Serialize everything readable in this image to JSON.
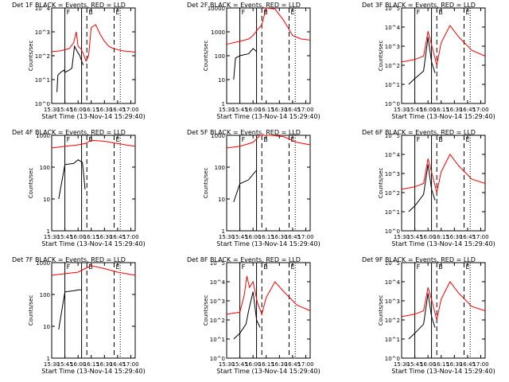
{
  "page": {
    "background": "#ffffff"
  },
  "common": {
    "x_tick_labels": [
      "15:30",
      "15:45",
      "16:00",
      "16:15",
      "16:30",
      "16:45",
      "17:00"
    ],
    "x_ticks_minutes_since_15_30": [
      0,
      15,
      30,
      45,
      60,
      75,
      90
    ],
    "xlabel": "Start Time (13-Nov-14 15:29:40)",
    "ylabel": "Counts/sec",
    "marker_labels": {
      "F": "F",
      "B": "B",
      "E": "E"
    },
    "markers_time": {
      "solid_1": "15:45",
      "solid_2": "16:04",
      "dashed_1": "16:10",
      "dashed_2": "16:41",
      "dotted_1": "16:48"
    },
    "colors": {
      "events": "#000000",
      "lld": "#ff0000"
    }
  },
  "chart_data": [
    {
      "id": "det1",
      "type": "line",
      "title": "Det 1F BLACK = Events, RED = LLD",
      "yscale": "log",
      "ylim": [
        1,
        10000
      ],
      "y_tick_labels": [
        "10^0",
        "10^1",
        "10^2",
        "10^3",
        "10^4"
      ],
      "series": [
        {
          "name": "Events",
          "color": "#000000",
          "x": [
            "15:36",
            "15:37",
            "15:40",
            "15:44",
            "15:45",
            "15:50",
            "15:53",
            "15:56",
            "15:59",
            "16:02",
            "16:04",
            "16:06"
          ],
          "y": [
            3,
            15,
            20,
            25,
            20,
            25,
            30,
            250,
            150,
            100,
            60,
            40
          ]
        },
        {
          "name": "LLD",
          "color": "#ff0000",
          "x": [
            "15:30",
            "15:40",
            "15:50",
            "15:55",
            "15:58",
            "16:00",
            "16:03",
            "16:06",
            "16:09",
            "16:12",
            "16:15",
            "16:20",
            "16:25",
            "16:30",
            "16:35",
            "16:40",
            "16:45",
            "16:50",
            "17:00",
            "17:05"
          ],
          "y": [
            150,
            160,
            200,
            350,
            1000,
            250,
            200,
            120,
            60,
            100,
            1500,
            2000,
            800,
            400,
            250,
            200,
            180,
            160,
            150,
            140
          ]
        }
      ]
    },
    {
      "id": "det2",
      "type": "line",
      "title": "Det 2F BLACK = Events, RED = LLD",
      "yscale": "log",
      "ylim": [
        1,
        10000
      ],
      "y_tick_labels": [
        "1",
        "10",
        "100",
        "1000",
        "10000"
      ],
      "series": [
        {
          "name": "Events",
          "color": "#000000",
          "x": [
            "15:38",
            "15:40",
            "15:45",
            "15:50",
            "15:55",
            "16:00",
            "16:04"
          ],
          "y": [
            10,
            80,
            100,
            110,
            120,
            200,
            150
          ]
        },
        {
          "name": "LLD",
          "color": "#ff0000",
          "x": [
            "15:30",
            "15:45",
            "15:55",
            "16:00",
            "16:05",
            "16:10",
            "16:15",
            "16:25",
            "16:35",
            "16:45",
            "16:55",
            "17:05"
          ],
          "y": [
            300,
            400,
            500,
            700,
            1200,
            2000,
            12000,
            9000,
            3000,
            700,
            500,
            450
          ]
        }
      ]
    },
    {
      "id": "det3",
      "type": "line",
      "title": "Det 3F BLACK = Events, RED = LLD",
      "yscale": "log",
      "ylim": [
        1,
        100000
      ],
      "y_tick_labels": [
        "10^0",
        "10^1",
        "10^2",
        "10^3",
        "10^4",
        "10^5"
      ],
      "series": [
        {
          "name": "Events",
          "color": "#000000",
          "x": [
            "15:38",
            "15:45",
            "15:55",
            "16:00",
            "16:04",
            "16:08"
          ],
          "y": [
            10,
            20,
            50,
            3000,
            150,
            40
          ]
        },
        {
          "name": "LLD",
          "color": "#ff0000",
          "x": [
            "15:30",
            "15:45",
            "15:55",
            "16:00",
            "16:05",
            "16:10",
            "16:15",
            "16:25",
            "16:35",
            "16:50",
            "17:05"
          ],
          "y": [
            150,
            200,
            300,
            6000,
            800,
            100,
            1500,
            12000,
            3000,
            600,
            300
          ]
        }
      ]
    },
    {
      "id": "det4",
      "type": "line",
      "title": "Det 4F BLACK = Events, RED = LLD",
      "yscale": "log",
      "ylim": [
        1,
        1000
      ],
      "y_tick_labels": [
        "1",
        "10",
        "100",
        "1000"
      ],
      "series": [
        {
          "name": "Events",
          "color": "#000000",
          "x": [
            "15:38",
            "15:45",
            "15:55",
            "16:00",
            "16:05",
            "16:08"
          ],
          "y": [
            10,
            120,
            130,
            170,
            140,
            20
          ]
        },
        {
          "name": "LLD",
          "color": "#ff0000",
          "x": [
            "15:30",
            "15:45",
            "16:00",
            "16:08",
            "16:15",
            "16:30",
            "16:45",
            "17:05"
          ],
          "y": [
            400,
            450,
            500,
            550,
            700,
            650,
            550,
            450
          ]
        }
      ]
    },
    {
      "id": "det5",
      "type": "line",
      "title": "Det 5F BLACK = Events, RED = LLD",
      "yscale": "log",
      "ylim": [
        1,
        1000
      ],
      "y_tick_labels": [
        "1",
        "10",
        "100",
        "1000"
      ],
      "series": [
        {
          "name": "Events",
          "color": "#000000",
          "x": [
            "15:38",
            "15:45",
            "15:55",
            "16:00",
            "16:04"
          ],
          "y": [
            8,
            30,
            40,
            60,
            80
          ]
        },
        {
          "name": "LLD",
          "color": "#ff0000",
          "x": [
            "15:30",
            "15:45",
            "16:00",
            "16:08",
            "16:20",
            "16:35",
            "16:50",
            "17:05"
          ],
          "y": [
            400,
            450,
            600,
            1500,
            1200,
            900,
            600,
            500
          ]
        }
      ]
    },
    {
      "id": "det6",
      "type": "line",
      "title": "Det 6F BLACK = Events, RED = LLD",
      "yscale": "log",
      "ylim": [
        1,
        100000
      ],
      "y_tick_labels": [
        "10^0",
        "10^1",
        "10^2",
        "10^3",
        "10^4",
        "10^5"
      ],
      "series": [
        {
          "name": "Events",
          "color": "#000000",
          "x": [
            "15:38",
            "15:45",
            "15:55",
            "16:00",
            "16:04",
            "16:08"
          ],
          "y": [
            10,
            20,
            80,
            3000,
            150,
            40
          ]
        },
        {
          "name": "LLD",
          "color": "#ff0000",
          "x": [
            "15:30",
            "15:45",
            "15:55",
            "16:00",
            "16:05",
            "16:10",
            "16:15",
            "16:25",
            "16:35",
            "16:50",
            "17:05"
          ],
          "y": [
            150,
            200,
            300,
            6000,
            800,
            100,
            1200,
            10000,
            2500,
            500,
            300
          ]
        }
      ]
    },
    {
      "id": "det7",
      "type": "line",
      "title": "Det 7F BLACK = Events, RED = LLD",
      "yscale": "log",
      "ylim": [
        1,
        1000
      ],
      "y_tick_labels": [
        "1",
        "10",
        "100",
        "1000"
      ],
      "series": [
        {
          "name": "Events",
          "color": "#000000",
          "x": [
            "15:38",
            "15:45",
            "15:55",
            "16:00",
            "16:04"
          ],
          "y": [
            8,
            120,
            130,
            140,
            140
          ]
        },
        {
          "name": "LLD",
          "color": "#ff0000",
          "x": [
            "15:30",
            "15:45",
            "16:00",
            "16:08",
            "16:15",
            "16:30",
            "16:45",
            "17:05"
          ],
          "y": [
            400,
            450,
            500,
            650,
            800,
            650,
            500,
            400
          ]
        }
      ]
    },
    {
      "id": "det8",
      "type": "line",
      "title": "Det 8F BLACK = Events, RED = LLD",
      "yscale": "log",
      "ylim": [
        1,
        100000
      ],
      "y_tick_labels": [
        "10^0",
        "10^1",
        "10^2",
        "10^3",
        "10^4",
        "10^5"
      ],
      "series": [
        {
          "name": "Events",
          "color": "#000000",
          "x": [
            "15:38",
            "15:45",
            "15:52",
            "15:55",
            "16:00",
            "16:04",
            "16:08"
          ],
          "y": [
            10,
            20,
            60,
            300,
            3000,
            100,
            40
          ]
        },
        {
          "name": "LLD",
          "color": "#ff0000",
          "x": [
            "15:30",
            "15:45",
            "15:50",
            "15:53",
            "15:56",
            "16:00",
            "16:05",
            "16:10",
            "16:15",
            "16:25",
            "16:35",
            "16:50",
            "17:05"
          ],
          "y": [
            200,
            250,
            2000,
            20000,
            5000,
            10000,
            800,
            200,
            1500,
            10000,
            3000,
            600,
            300
          ]
        }
      ]
    },
    {
      "id": "det9",
      "type": "line",
      "title": "Det 9F BLACK = Events, RED = LLD",
      "yscale": "log",
      "ylim": [
        1,
        100000
      ],
      "y_tick_labels": [
        "10^0",
        "10^1",
        "10^2",
        "10^3",
        "10^4",
        "10^5"
      ],
      "series": [
        {
          "name": "Events",
          "color": "#000000",
          "x": [
            "15:38",
            "15:45",
            "15:55",
            "16:00",
            "16:04",
            "16:08"
          ],
          "y": [
            10,
            20,
            60,
            2500,
            150,
            40
          ]
        },
        {
          "name": "LLD",
          "color": "#ff0000",
          "x": [
            "15:30",
            "15:45",
            "15:55",
            "16:00",
            "16:05",
            "16:10",
            "16:15",
            "16:25",
            "16:35",
            "16:50",
            "17:05"
          ],
          "y": [
            150,
            200,
            300,
            5000,
            800,
            100,
            1200,
            10000,
            2500,
            500,
            300
          ]
        }
      ]
    }
  ]
}
